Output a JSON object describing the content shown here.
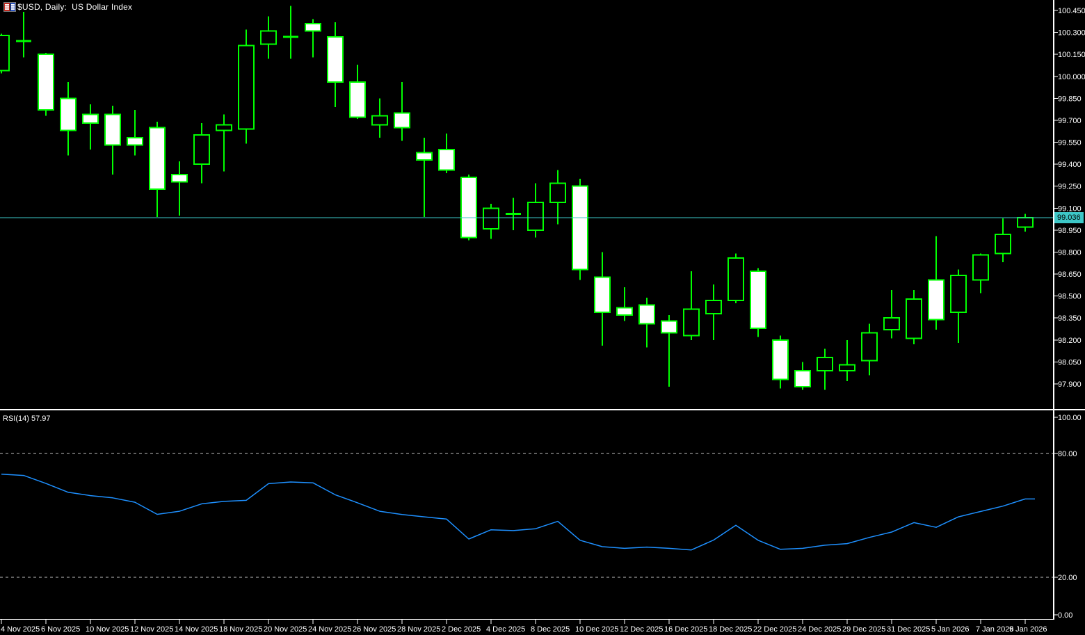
{
  "title": "$USD, Daily:  US Dollar Index",
  "indicator": {
    "label": "RSI(14) 57.97",
    "name": "RSI",
    "period": 14,
    "value": 57.97
  },
  "current_price": {
    "value": "99.036"
  },
  "price_axis": {
    "labels": [
      "100.450",
      "100.300",
      "100.150",
      "100.000",
      "99.850",
      "99.700",
      "99.550",
      "99.400",
      "99.250",
      "99.100",
      "98.950",
      "98.800",
      "98.650",
      "98.500",
      "98.350",
      "98.200",
      "98.050",
      "97.900"
    ],
    "min": 97.9,
    "max": 100.45,
    "step": 0.15
  },
  "time_axis": {
    "labels": [
      "4 Nov 2025",
      "6 Nov 2025",
      "10 Nov 2025",
      "12 Nov 2025",
      "14 Nov 2025",
      "18 Nov 2025",
      "20 Nov 2025",
      "24 Nov 2025",
      "26 Nov 2025",
      "28 Nov 2025",
      "2 Dec 2025",
      "4 Dec 2025",
      "8 Dec 2025",
      "10 Dec 2025",
      "12 Dec 2025",
      "16 Dec 2025",
      "18 Dec 2025",
      "22 Dec 2025",
      "24 Dec 2025",
      "29 Dec 2025",
      "31 Dec 2025",
      "5 Jan 2026",
      "7 Jan 2026",
      "9 Jan 2026"
    ],
    "bars_per_label": 2
  },
  "rsi_axis": {
    "labels": [
      "100.00",
      "80.00",
      "20.00",
      "0.00"
    ],
    "dashed_levels": [
      80,
      20
    ],
    "range": [
      0,
      100
    ]
  },
  "colors": {
    "background": "#000000",
    "candle_outline": "#00ff00",
    "bull_fill": "#000000",
    "bear_fill": "#ffffff",
    "rsi_line": "#1e90ff",
    "level_dash": "#bfbfbf",
    "axis_text": "#ffffff",
    "pane_border": "#ffffff",
    "price_line": "#3dc7c7",
    "price_tag_bg": "#3dc7c7",
    "price_tag_text": "#000000"
  },
  "chart_data": [
    {
      "type": "candlestick",
      "title": "$USD, Daily:  US Dollar Index",
      "symbol": "$USD",
      "timeframe": "Daily",
      "current_price": 99.036,
      "ylim": [
        97.79,
        100.52
      ],
      "grid": false,
      "dates": [
        "4 Nov 2025",
        "5 Nov 2025",
        "6 Nov 2025",
        "7 Nov 2025",
        "10 Nov 2025",
        "11 Nov 2025",
        "12 Nov 2025",
        "13 Nov 2025",
        "14 Nov 2025",
        "17 Nov 2025",
        "18 Nov 2025",
        "19 Nov 2025",
        "20 Nov 2025",
        "21 Nov 2025",
        "24 Nov 2025",
        "25 Nov 2025",
        "26 Nov 2025",
        "27 Nov 2025",
        "28 Nov 2025",
        "1 Dec 2025",
        "2 Dec 2025",
        "3 Dec 2025",
        "4 Dec 2025",
        "5 Dec 2025",
        "8 Dec 2025",
        "9 Dec 2025",
        "10 Dec 2025",
        "11 Dec 2025",
        "12 Dec 2025",
        "15 Dec 2025",
        "16 Dec 2025",
        "17 Dec 2025",
        "18 Dec 2025",
        "19 Dec 2025",
        "22 Dec 2025",
        "23 Dec 2025",
        "24 Dec 2025",
        "26 Dec 2025",
        "29 Dec 2025",
        "30 Dec 2025",
        "31 Dec 2025",
        "2 Jan 2026",
        "5 Jan 2026",
        "6 Jan 2026",
        "7 Jan 2026",
        "8 Jan 2026",
        "9 Jan 2026"
      ],
      "open": [
        100.04,
        100.23,
        100.15,
        99.85,
        99.74,
        99.74,
        99.58,
        99.65,
        99.33,
        99.4,
        99.63,
        99.64,
        100.22,
        100.26,
        100.36,
        100.27,
        99.96,
        99.67,
        99.75,
        99.48,
        99.5,
        99.31,
        98.96,
        99.05,
        98.95,
        99.14,
        99.25,
        98.63,
        98.42,
        98.44,
        98.33,
        98.23,
        98.38,
        98.47,
        98.67,
        98.2,
        97.99,
        97.99,
        97.99,
        98.06,
        98.27,
        98.21,
        98.61,
        98.39,
        98.61,
        98.79,
        98.97
      ],
      "high": [
        100.29,
        100.44,
        100.16,
        99.96,
        99.81,
        99.8,
        99.77,
        99.69,
        99.42,
        99.68,
        99.74,
        100.32,
        100.41,
        100.48,
        100.39,
        100.37,
        100.08,
        99.85,
        99.96,
        99.58,
        99.61,
        99.33,
        99.13,
        99.17,
        99.27,
        99.36,
        99.3,
        98.8,
        98.56,
        98.49,
        98.37,
        98.67,
        98.58,
        98.79,
        98.69,
        98.23,
        98.05,
        98.14,
        98.2,
        98.31,
        98.54,
        98.54,
        98.91,
        98.68,
        98.79,
        99.03,
        99.06
      ],
      "low": [
        100.02,
        100.13,
        99.73,
        99.46,
        99.5,
        99.33,
        99.46,
        99.04,
        99.05,
        99.27,
        99.35,
        99.54,
        100.12,
        100.12,
        100.13,
        99.79,
        99.71,
        99.58,
        99.56,
        99.04,
        99.34,
        98.88,
        98.89,
        98.95,
        98.9,
        98.99,
        98.61,
        98.16,
        98.33,
        98.15,
        97.88,
        98.2,
        98.2,
        98.45,
        98.22,
        97.87,
        97.86,
        97.86,
        97.92,
        97.96,
        98.21,
        98.17,
        98.27,
        98.18,
        98.52,
        98.73,
        98.94
      ],
      "close": [
        100.28,
        100.24,
        99.77,
        99.63,
        99.68,
        99.53,
        99.53,
        99.23,
        99.28,
        99.6,
        99.67,
        100.21,
        100.31,
        100.27,
        100.31,
        99.96,
        99.72,
        99.73,
        99.65,
        99.43,
        99.36,
        98.9,
        99.1,
        99.06,
        99.14,
        99.27,
        98.68,
        98.39,
        98.37,
        98.31,
        98.25,
        98.41,
        98.47,
        98.76,
        98.28,
        97.93,
        97.88,
        98.08,
        98.03,
        98.25,
        98.35,
        98.48,
        98.34,
        98.64,
        98.78,
        98.92,
        99.036
      ]
    },
    {
      "type": "line",
      "title": "RSI(14)",
      "last_value": 57.97,
      "ylim": [
        0,
        100
      ],
      "levels": [
        80,
        20
      ],
      "values": [
        70.0,
        69.4,
        65.5,
        61.2,
        59.6,
        58.5,
        56.4,
        50.5,
        52.0,
        55.6,
        56.8,
        57.3,
        65.4,
        66.2,
        65.8,
        60.0,
        56.1,
        52.0,
        50.4,
        49.3,
        48.2,
        38.5,
        43.0,
        42.6,
        43.5,
        47.1,
        37.9,
        34.8,
        34.0,
        34.6,
        34.0,
        33.2,
        38.0,
        45.2,
        37.9,
        33.5,
        34.0,
        35.5,
        36.3,
        39.3,
        41.9,
        46.5,
        44.2,
        49.3,
        51.9,
        54.5,
        57.97
      ]
    }
  ]
}
